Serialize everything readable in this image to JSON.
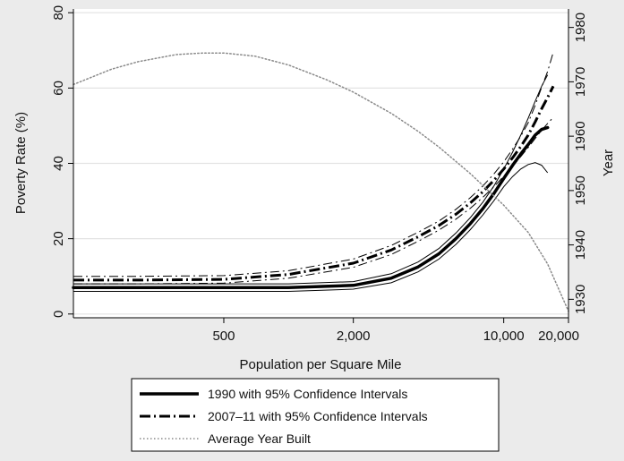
{
  "chart_data": {
    "type": "line",
    "xlabel": "Population per Square Mile",
    "ylabel": "Poverty Rate (%)",
    "y2label": "Year",
    "x_scale": "log",
    "x_ticks": [
      500,
      2000,
      10000,
      20000
    ],
    "x_tick_labels": [
      "500",
      "2,000",
      "10,000",
      "20,000"
    ],
    "xlim": [
      100,
      20000
    ],
    "ylim": [
      -1,
      81
    ],
    "y_ticks": [
      0,
      20,
      40,
      60,
      80
    ],
    "y_tick_labels": [
      "0",
      "20",
      "40",
      "60",
      "80"
    ],
    "y2lim": [
      1926.6,
      1983.4
    ],
    "y2_ticks": [
      1930,
      1940,
      1950,
      1960,
      1970,
      1980
    ],
    "y2_tick_labels": [
      "1930",
      "1940",
      "1950",
      "1960",
      "1970",
      "1980"
    ],
    "grid": true,
    "legend_position": "bottom",
    "series": [
      {
        "name": "1990 with 95% Confidence Intervals",
        "style": "solid",
        "color": "#000000",
        "x": [
          100,
          200,
          500,
          1000,
          2000,
          3000,
          4000,
          5000,
          6000,
          7000,
          8000,
          9000,
          10000,
          11000,
          12000,
          13000,
          14000,
          15000,
          16000
        ],
        "y": [
          7,
          7,
          7,
          7,
          7.6,
          9.5,
          12.5,
          16,
          20,
          24,
          28,
          32,
          36,
          39.5,
          42.5,
          45,
          47.5,
          49,
          49.5
        ],
        "ci_low": [
          6,
          6,
          6,
          6,
          6.6,
          8.3,
          11.2,
          14.6,
          18.5,
          22.4,
          26.3,
          30.1,
          33.8,
          36.5,
          38.5,
          39.7,
          40.2,
          39.5,
          37.5
        ],
        "ci_high": [
          8,
          8,
          8,
          8,
          8.6,
          10.7,
          13.8,
          17.4,
          21.5,
          25.6,
          29.7,
          34,
          38.5,
          43,
          47.5,
          52,
          56.5,
          60.5,
          63.5
        ]
      },
      {
        "name": "2007–11 with 95% Confidence Intervals",
        "style": "dashdot",
        "color": "#000000",
        "x": [
          100,
          200,
          500,
          1000,
          2000,
          3000,
          4000,
          5000,
          6000,
          7000,
          8000,
          9000,
          10000,
          11000,
          12000,
          13000,
          14000,
          15000,
          16000,
          17000
        ],
        "y": [
          9,
          9,
          9.2,
          10.5,
          13.5,
          17,
          20.5,
          23.5,
          26.5,
          29.5,
          32.5,
          35.5,
          38.5,
          41.5,
          44.5,
          47.5,
          51,
          54.5,
          57.5,
          60.5
        ],
        "ci_low": [
          8,
          8,
          8.2,
          9.5,
          12.4,
          15.8,
          19.3,
          22.3,
          25.2,
          28.1,
          31,
          33.8,
          36.6,
          39.2,
          41.8,
          44.2,
          46.6,
          48.8,
          50.6,
          52.2
        ],
        "ci_high": [
          10,
          10,
          10.2,
          11.5,
          14.6,
          18.2,
          21.7,
          24.7,
          27.8,
          30.9,
          34,
          37.2,
          40.4,
          43.8,
          47.2,
          50.8,
          55.4,
          60.2,
          64.4,
          69.5
        ]
      },
      {
        "name": "Average Year Built",
        "style": "dotted",
        "color": "#8a8a8a",
        "axis": "right",
        "x": [
          100,
          150,
          200,
          300,
          400,
          500,
          700,
          1000,
          1500,
          2000,
          3000,
          4000,
          5000,
          7000,
          10000,
          13000,
          16000,
          20000
        ],
        "y": [
          1969.5,
          1972.3,
          1973.7,
          1975,
          1975.3,
          1975.3,
          1974.7,
          1973.1,
          1970.4,
          1968.1,
          1964.2,
          1960.9,
          1958,
          1953.1,
          1947.3,
          1942.3,
          1936.5,
          1927.8
        ]
      }
    ]
  }
}
